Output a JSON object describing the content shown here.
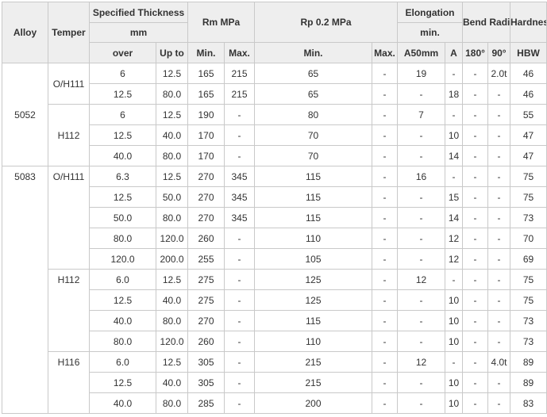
{
  "headers": {
    "alloy": "Alloy",
    "temper": "Temper",
    "thickness": "Specified Thickness",
    "thickness_unit": "mm",
    "rm": "Rm MPa",
    "rp": "Rp 0.2 MPa",
    "elongation": "Elongation",
    "elongation_sub": "min.",
    "bend": "Bend Radius",
    "hardness": "Hardness",
    "over": "over",
    "up_to": "Up to",
    "rm_min": "Min.",
    "rm_max": "Max.",
    "rp_min": "Min.",
    "rp_max": "Max.",
    "a50": "A50mm",
    "a": "A",
    "deg180": "180°",
    "deg90": "90°",
    "hbw": "HBW"
  },
  "rows": [
    {
      "alloy": "5052",
      "temper": "O/H111",
      "c": [
        "6",
        "12.5",
        "165",
        "215",
        "65",
        "-",
        "19",
        "-",
        "-",
        "2.0t",
        "46"
      ]
    },
    {
      "alloy": "",
      "temper": "",
      "c": [
        "12.5",
        "80.0",
        "165",
        "215",
        "65",
        "-",
        "-",
        "18",
        "-",
        "-",
        "46"
      ]
    },
    {
      "alloy": "",
      "temper": "H112",
      "c": [
        "6",
        "12.5",
        "190",
        "-",
        "80",
        "-",
        "7",
        "-",
        "-",
        "-",
        "55"
      ]
    },
    {
      "alloy": "",
      "temper": "",
      "c": [
        "12.5",
        "40.0",
        "170",
        "-",
        "70",
        "-",
        "-",
        "10",
        "-",
        "-",
        "47"
      ]
    },
    {
      "alloy": "",
      "temper": "",
      "c": [
        "40.0",
        "80.0",
        "170",
        "-",
        "70",
        "-",
        "-",
        "14",
        "-",
        "-",
        "47"
      ]
    },
    {
      "alloy": "5083",
      "temper": "O/H111",
      "c": [
        "6.3",
        "12.5",
        "270",
        "345",
        "115",
        "-",
        "16",
        "-",
        "-",
        "-",
        "75"
      ]
    },
    {
      "alloy": "",
      "temper": "",
      "c": [
        "12.5",
        "50.0",
        "270",
        "345",
        "115",
        "-",
        "-",
        "15",
        "-",
        "-",
        "75"
      ]
    },
    {
      "alloy": "",
      "temper": "",
      "c": [
        "50.0",
        "80.0",
        "270",
        "345",
        "115",
        "-",
        "-",
        "14",
        "-",
        "-",
        "73"
      ]
    },
    {
      "alloy": "",
      "temper": "",
      "c": [
        "80.0",
        "120.0",
        "260",
        "-",
        "110",
        "-",
        "-",
        "12",
        "-",
        "-",
        "70"
      ]
    },
    {
      "alloy": "",
      "temper": "",
      "c": [
        "120.0",
        "200.0",
        "255",
        "-",
        "105",
        "-",
        "-",
        "12",
        "-",
        "-",
        "69"
      ]
    },
    {
      "alloy": "",
      "temper": "H112",
      "c": [
        "6.0",
        "12.5",
        "275",
        "-",
        "125",
        "-",
        "12",
        "-",
        "-",
        "-",
        "75"
      ]
    },
    {
      "alloy": "",
      "temper": "",
      "c": [
        "12.5",
        "40.0",
        "275",
        "-",
        "125",
        "-",
        "-",
        "10",
        "-",
        "-",
        "75"
      ]
    },
    {
      "alloy": "",
      "temper": "",
      "c": [
        "40.0",
        "80.0",
        "270",
        "-",
        "115",
        "-",
        "-",
        "10",
        "-",
        "-",
        "73"
      ]
    },
    {
      "alloy": "",
      "temper": "",
      "c": [
        "80.0",
        "120.0",
        "260",
        "-",
        "110",
        "-",
        "-",
        "10",
        "-",
        "-",
        "73"
      ]
    },
    {
      "alloy": "",
      "temper": "H116",
      "c": [
        "6.0",
        "12.5",
        "305",
        "-",
        "215",
        "-",
        "12",
        "-",
        "-",
        "4.0t",
        "89"
      ]
    },
    {
      "alloy": "",
      "temper": "",
      "c": [
        "12.5",
        "40.0",
        "305",
        "-",
        "215",
        "-",
        "-",
        "10",
        "-",
        "-",
        "89"
      ]
    },
    {
      "alloy": "",
      "temper": "",
      "c": [
        "40.0",
        "80.0",
        "285",
        "-",
        "200",
        "-",
        "-",
        "10",
        "-",
        "-",
        "83"
      ]
    }
  ]
}
